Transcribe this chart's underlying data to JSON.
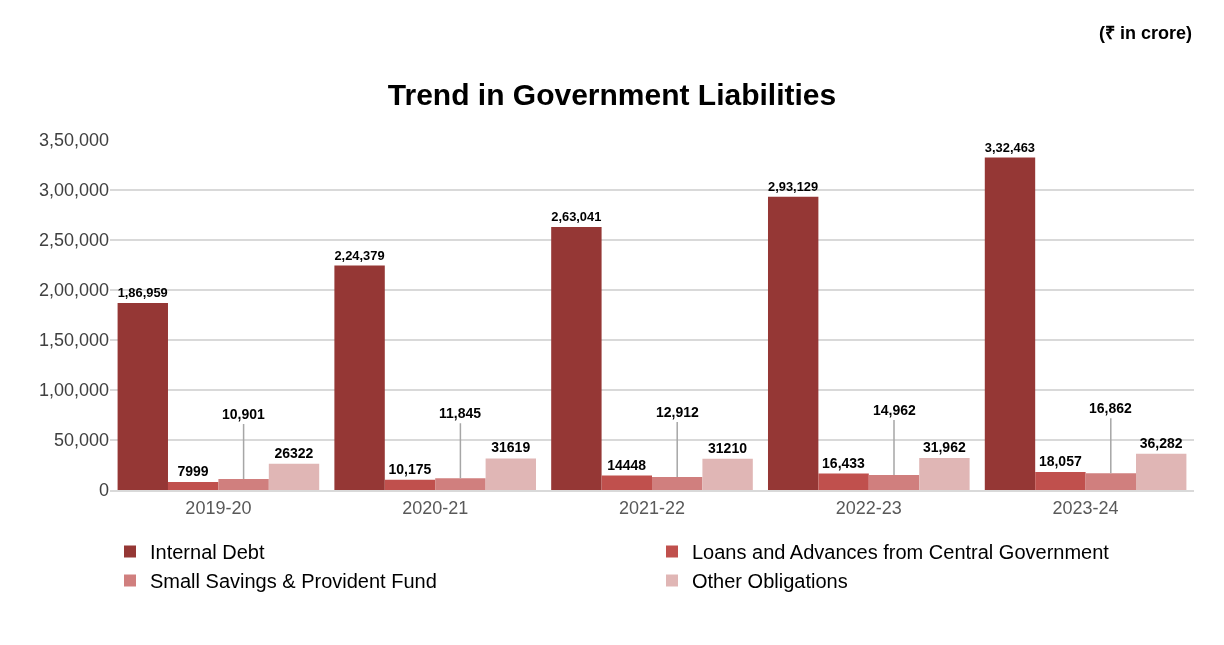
{
  "chart_data": {
    "type": "bar",
    "title": "Trend in Government Liabilities",
    "annotations": [
      "(₹ in crore)"
    ],
    "categories": [
      "2019-20",
      "2020-21",
      "2021-22",
      "2022-23",
      "2023-24"
    ],
    "series": [
      {
        "name": "Internal Debt",
        "color": "#953735",
        "values": [
          186959,
          224379,
          263041,
          293129,
          332463
        ],
        "value_labels": [
          "1,86,959",
          "2,24,379",
          "2,63,041",
          "2,93,129",
          "3,32,463"
        ]
      },
      {
        "name": "Loans and Advances from Central Government",
        "color": "#c0504d",
        "values": [
          7999,
          10175,
          14448,
          16433,
          18057
        ],
        "value_labels": [
          "7999",
          "10,175",
          "14448",
          "16,433",
          "18,057"
        ]
      },
      {
        "name": "Small Savings & Provident Fund",
        "color": "#d07f7e",
        "values": [
          10901,
          11845,
          12912,
          14962,
          16862
        ],
        "value_labels": [
          "10,901",
          "11,845",
          "12,912",
          "14,962",
          "16,862"
        ]
      },
      {
        "name": "Other Obligations",
        "color": "#e0b6b5",
        "values": [
          26322,
          31619,
          31210,
          31962,
          36282
        ],
        "value_labels": [
          "26322",
          "31619",
          "31210",
          "31,962",
          "36,282"
        ]
      }
    ],
    "ylim": [
      0,
      350000
    ],
    "yticks": [
      0,
      {
        "value": 50000,
        "label": "50,000"
      },
      {
        "value": 100000,
        "label": "1,00,000"
      },
      {
        "value": 150000,
        "label": "1,50,000"
      },
      {
        "value": 200000,
        "label": "2,00,000"
      },
      {
        "value": 250000,
        "label": "2,50,000"
      },
      {
        "value": 300000,
        "label": "3,00,000"
      },
      {
        "value": 350000,
        "label": "3,50,000"
      }
    ],
    "grid": "y",
    "legend": "bottom"
  }
}
